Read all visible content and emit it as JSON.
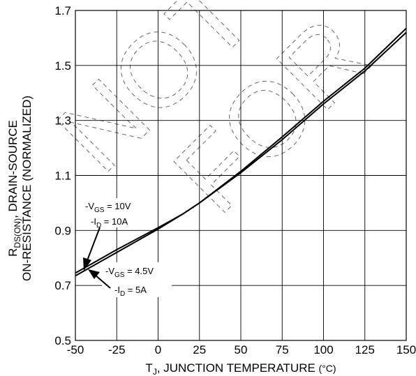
{
  "chart_data": {
    "type": "line",
    "xlabel": {
      "prefix": "T",
      "subscript": "J",
      "main": ", JUNCTION TEMPERATURE ",
      "unit": "(°C)"
    },
    "ylabel": {
      "line1_prefix": "R",
      "line1_subscript": "DS(ON)",
      "line1_rest": ", DRAIN-SOURCE",
      "line2": "ON-RESISTANCE (NORMALIZED)"
    },
    "xlim": [
      -50,
      150
    ],
    "ylim": [
      0.5,
      1.7
    ],
    "xticks": [
      -50,
      -25,
      0,
      25,
      50,
      75,
      100,
      125,
      150
    ],
    "xtick_labels": [
      "-50",
      "-25",
      "0",
      "25",
      "50",
      "75",
      "100",
      "125",
      "150"
    ],
    "yticks": [
      0.5,
      0.7,
      0.9,
      1.1,
      1.3,
      1.5,
      1.7
    ],
    "ytick_labels": [
      "0.5",
      "0.7",
      "0.9",
      "1.1",
      "1.3",
      "1.5",
      "1.7"
    ],
    "grid": true,
    "series": [
      {
        "x": [
          -50,
          -25,
          0,
          15,
          25,
          50,
          75,
          100,
          125,
          150
        ],
        "y": [
          0.745,
          0.83,
          0.91,
          0.96,
          1.0,
          1.115,
          1.24,
          1.37,
          1.49,
          1.635
        ],
        "color": "#000000"
      },
      {
        "x": [
          -50,
          -25,
          0,
          15,
          25,
          50,
          75,
          100,
          125,
          150
        ],
        "y": [
          0.735,
          0.82,
          0.905,
          0.96,
          1.0,
          1.11,
          1.23,
          1.36,
          1.48,
          1.62
        ],
        "color": "#000000"
      }
    ],
    "annotations": [
      {
        "line1_prefix": "-V",
        "line1_subscript": "GS",
        "line1_rest": " = 10V",
        "line2_prefix": "-I",
        "line2_subscript": "D",
        "line2_rest": " = 10A"
      },
      {
        "line1_prefix": "-V",
        "line1_subscript": "GS",
        "line1_rest": " = 4.5V",
        "line2_prefix": "-I",
        "line2_subscript": "D",
        "line2_rest": " = 5A"
      }
    ]
  },
  "watermark": {
    "text1": "NOT",
    "text2": "FOR"
  }
}
